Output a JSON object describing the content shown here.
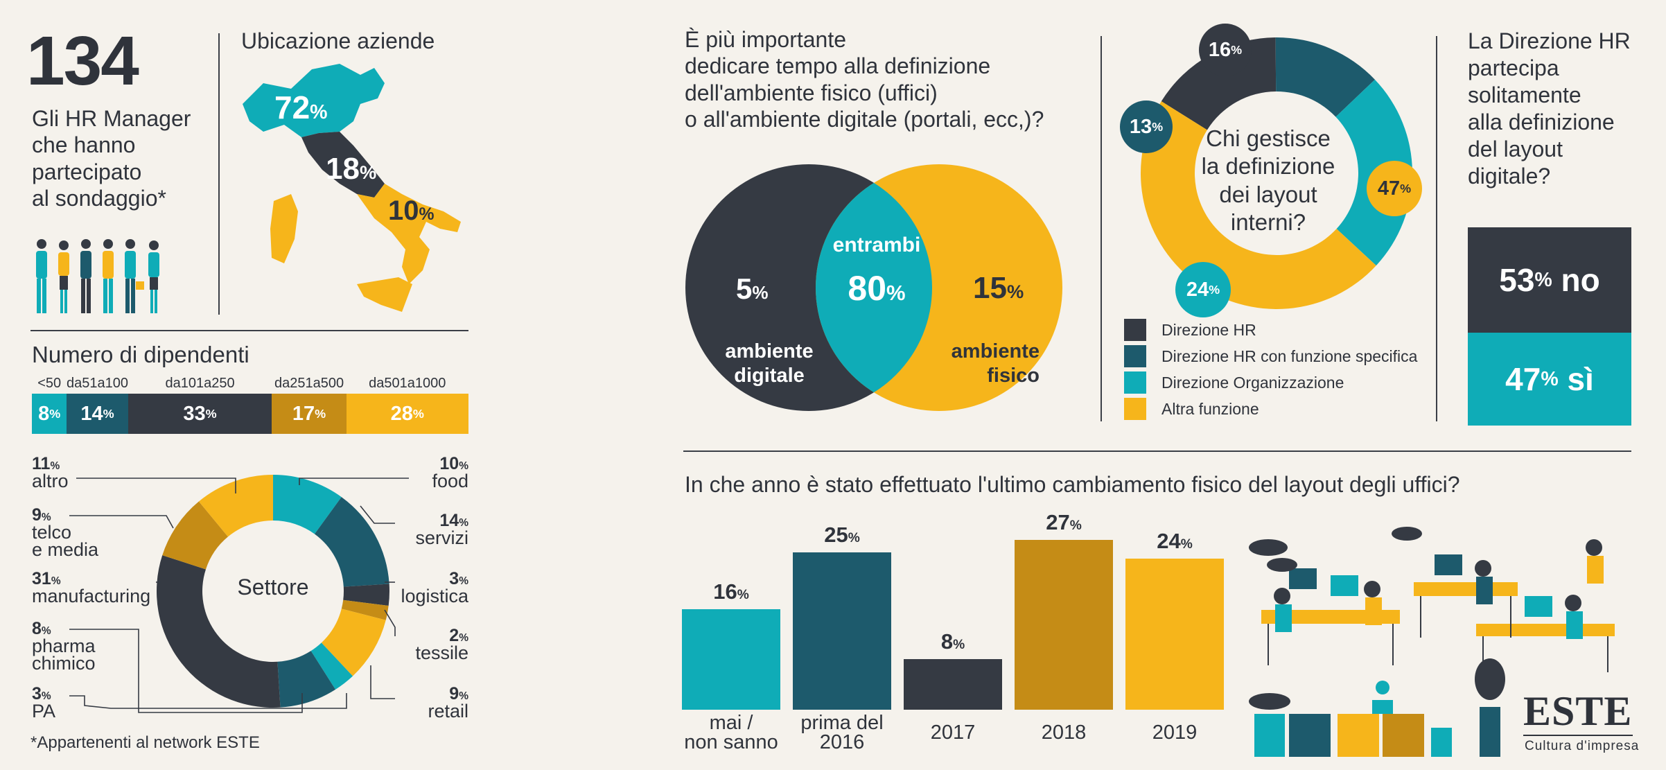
{
  "colors": {
    "dark": "#353a43",
    "navy": "#1d5a6c",
    "teal": "#0facb7",
    "ochre": "#c58c16",
    "yellow": "#f6b51b",
    "bg": "#f5f2ec"
  },
  "summary": {
    "count": "134",
    "description": "Gli HR Manager\nche hanno\npartecipato\nal sondaggio*"
  },
  "location": {
    "title": "Ubicazione aziende",
    "north": "72",
    "center": "18",
    "south": "10",
    "pct": "%"
  },
  "footnote": "*Appartenenti al network ESTE",
  "brand": {
    "name": "ESTE",
    "tagline": "Cultura d'impresa"
  },
  "chart_data": [
    {
      "type": "bar",
      "title": "Numero di dipendenti",
      "categories": [
        "<50",
        "da51a100",
        "da101a250",
        "da251a500",
        "da501a1000"
      ],
      "values": [
        8,
        14,
        33,
        17,
        28
      ],
      "unit": "%"
    },
    {
      "type": "pie",
      "title": "Settore",
      "categories": [
        "food",
        "servizi",
        "logistica",
        "tessile",
        "retail",
        "PA",
        "pharma chimico",
        "manufacturing",
        "telco e media",
        "altro"
      ],
      "values": [
        10,
        14,
        3,
        2,
        9,
        3,
        8,
        31,
        9,
        11
      ],
      "unit": "%"
    },
    {
      "type": "venn",
      "title": "È più importante\ndedicare tempo alla definizione\ndell'ambiente fisico (uffici)\no all'ambiente digitale (portali, ecc,)?",
      "left": {
        "label": "ambiente\ndigitale",
        "value": 5
      },
      "overlap": {
        "label": "entrambi",
        "value": 80
      },
      "right": {
        "label": "ambiente\nfisico",
        "value": 15
      },
      "unit": "%"
    },
    {
      "type": "pie",
      "title": "Chi gestisce\nla definizione\ndei layout\ninterni?",
      "categories": [
        "Direzione HR",
        "Direzione HR con funzione specifica",
        "Direzione Organizzazione",
        "Altra funzione"
      ],
      "values": [
        16,
        13,
        24,
        47
      ],
      "unit": "%"
    },
    {
      "type": "bar",
      "title": "La Direzione HR\npartecipa\nsolitamente\nalla definizione\ndel layout\ndigitale?",
      "categories": [
        "no",
        "sì"
      ],
      "values": [
        53,
        47
      ],
      "unit": "%"
    },
    {
      "type": "bar",
      "title": "In che anno è stato effettuato l'ultimo cambiamento fisico del layout degli uffici?",
      "categories": [
        "mai /\nnon sanno",
        "prima del\n2016",
        "2017",
        "2018",
        "2019"
      ],
      "values": [
        16,
        25,
        8,
        27,
        24
      ],
      "unit": "%"
    }
  ]
}
